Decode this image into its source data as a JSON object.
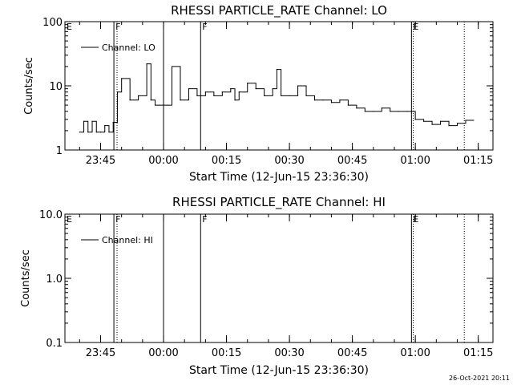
{
  "footer": {
    "timestamp": "26-Oct-2021 20:11"
  },
  "chart_data": [
    {
      "type": "line",
      "title": "RHESSI PARTICLE_RATE Channel: LO",
      "xlabel": "Start Time (12-Jun-15 23:36:30)",
      "ylabel": "Counts/sec",
      "yscale": "log",
      "ylim": [
        1,
        100
      ],
      "xlim": [
        "23:36:30",
        "01:18:30"
      ],
      "xticks": [
        "23:45",
        "00:00",
        "00:15",
        "00:30",
        "00:45",
        "01:00",
        "01:15"
      ],
      "yticks": [
        "1",
        "10",
        "100"
      ],
      "legend": {
        "placement": "top-left",
        "entries": [
          "Channel: LO"
        ]
      },
      "grid": false,
      "markers": [
        {
          "label": "E",
          "time": "23:36:30",
          "style": "dotted"
        },
        {
          "label": "F",
          "time": "23:48:10",
          "style": "solid"
        },
        {
          "label": "",
          "time": "23:48:55",
          "style": "dotted"
        },
        {
          "label": "",
          "time": "00:00:00",
          "style": "solid"
        },
        {
          "label": "F",
          "time": "00:08:50",
          "style": "solid"
        },
        {
          "label": "E",
          "time": "00:59:05",
          "style": "solid"
        },
        {
          "label": "",
          "time": "00:59:30",
          "style": "dotted"
        },
        {
          "label": "",
          "time": "01:11:40",
          "style": "dotted"
        }
      ],
      "series": [
        {
          "name": "Channel: LO",
          "x": [
            "23:40:00",
            "23:41:00",
            "23:42:00",
            "23:43:00",
            "23:44:00",
            "23:45:00",
            "23:46:00",
            "23:47:00",
            "23:48:00",
            "23:49:00",
            "23:50:00",
            "23:52:00",
            "23:54:00",
            "23:56:00",
            "23:57:00",
            "23:58:00",
            "23:59:00",
            "00:00:00",
            "00:01:00",
            "00:02:00",
            "00:04:00",
            "00:06:00",
            "00:08:00",
            "00:10:00",
            "00:12:00",
            "00:14:00",
            "00:16:00",
            "00:17:00",
            "00:18:00",
            "00:20:00",
            "00:22:00",
            "00:24:00",
            "00:26:00",
            "00:27:00",
            "00:28:00",
            "00:30:00",
            "00:32:00",
            "00:34:00",
            "00:36:00",
            "00:38:00",
            "00:40:00",
            "00:42:00",
            "00:44:00",
            "00:46:00",
            "00:48:00",
            "00:50:00",
            "00:52:00",
            "00:54:00",
            "00:56:00",
            "00:58:00",
            "01:00:00",
            "01:02:00",
            "01:04:00",
            "01:06:00",
            "01:08:00",
            "01:10:00",
            "01:12:00"
          ],
          "values": [
            1.9,
            2.8,
            1.9,
            2.8,
            1.9,
            1.9,
            2.4,
            1.9,
            2.7,
            8,
            13,
            6,
            7,
            22,
            6,
            5,
            5,
            5,
            5,
            20,
            6,
            9,
            7,
            8,
            7,
            8,
            9,
            6,
            8,
            11,
            9,
            7,
            9,
            18,
            7,
            7,
            10,
            7,
            6,
            6,
            5.5,
            6,
            5,
            4.5,
            4,
            4,
            4.5,
            4,
            4,
            4,
            3,
            2.8,
            2.5,
            2.8,
            2.4,
            2.6,
            2.9
          ]
        }
      ]
    },
    {
      "type": "line",
      "title": "RHESSI PARTICLE_RATE Channel: HI",
      "xlabel": "Start Time (12-Jun-15 23:36:30)",
      "ylabel": "Counts/sec",
      "yscale": "log",
      "ylim": [
        0.1,
        10.0
      ],
      "xlim": [
        "23:36:30",
        "01:18:30"
      ],
      "xticks": [
        "23:45",
        "00:00",
        "00:15",
        "00:30",
        "00:45",
        "01:00",
        "01:15"
      ],
      "yticks": [
        "0.1",
        "1.0",
        "10.0"
      ],
      "legend": {
        "placement": "top-left",
        "entries": [
          "Channel: HI"
        ]
      },
      "grid": false,
      "markers": [
        {
          "label": "E",
          "time": "23:36:30",
          "style": "dotted"
        },
        {
          "label": "F",
          "time": "23:48:10",
          "style": "solid"
        },
        {
          "label": "",
          "time": "23:48:55",
          "style": "dotted"
        },
        {
          "label": "",
          "time": "00:00:00",
          "style": "solid"
        },
        {
          "label": "F",
          "time": "00:08:50",
          "style": "solid"
        },
        {
          "label": "E",
          "time": "00:59:05",
          "style": "solid"
        },
        {
          "label": "",
          "time": "00:59:30",
          "style": "dotted"
        },
        {
          "label": "",
          "time": "01:11:40",
          "style": "dotted"
        }
      ],
      "series": [
        {
          "name": "Channel: HI",
          "x": [],
          "values": []
        }
      ]
    }
  ]
}
